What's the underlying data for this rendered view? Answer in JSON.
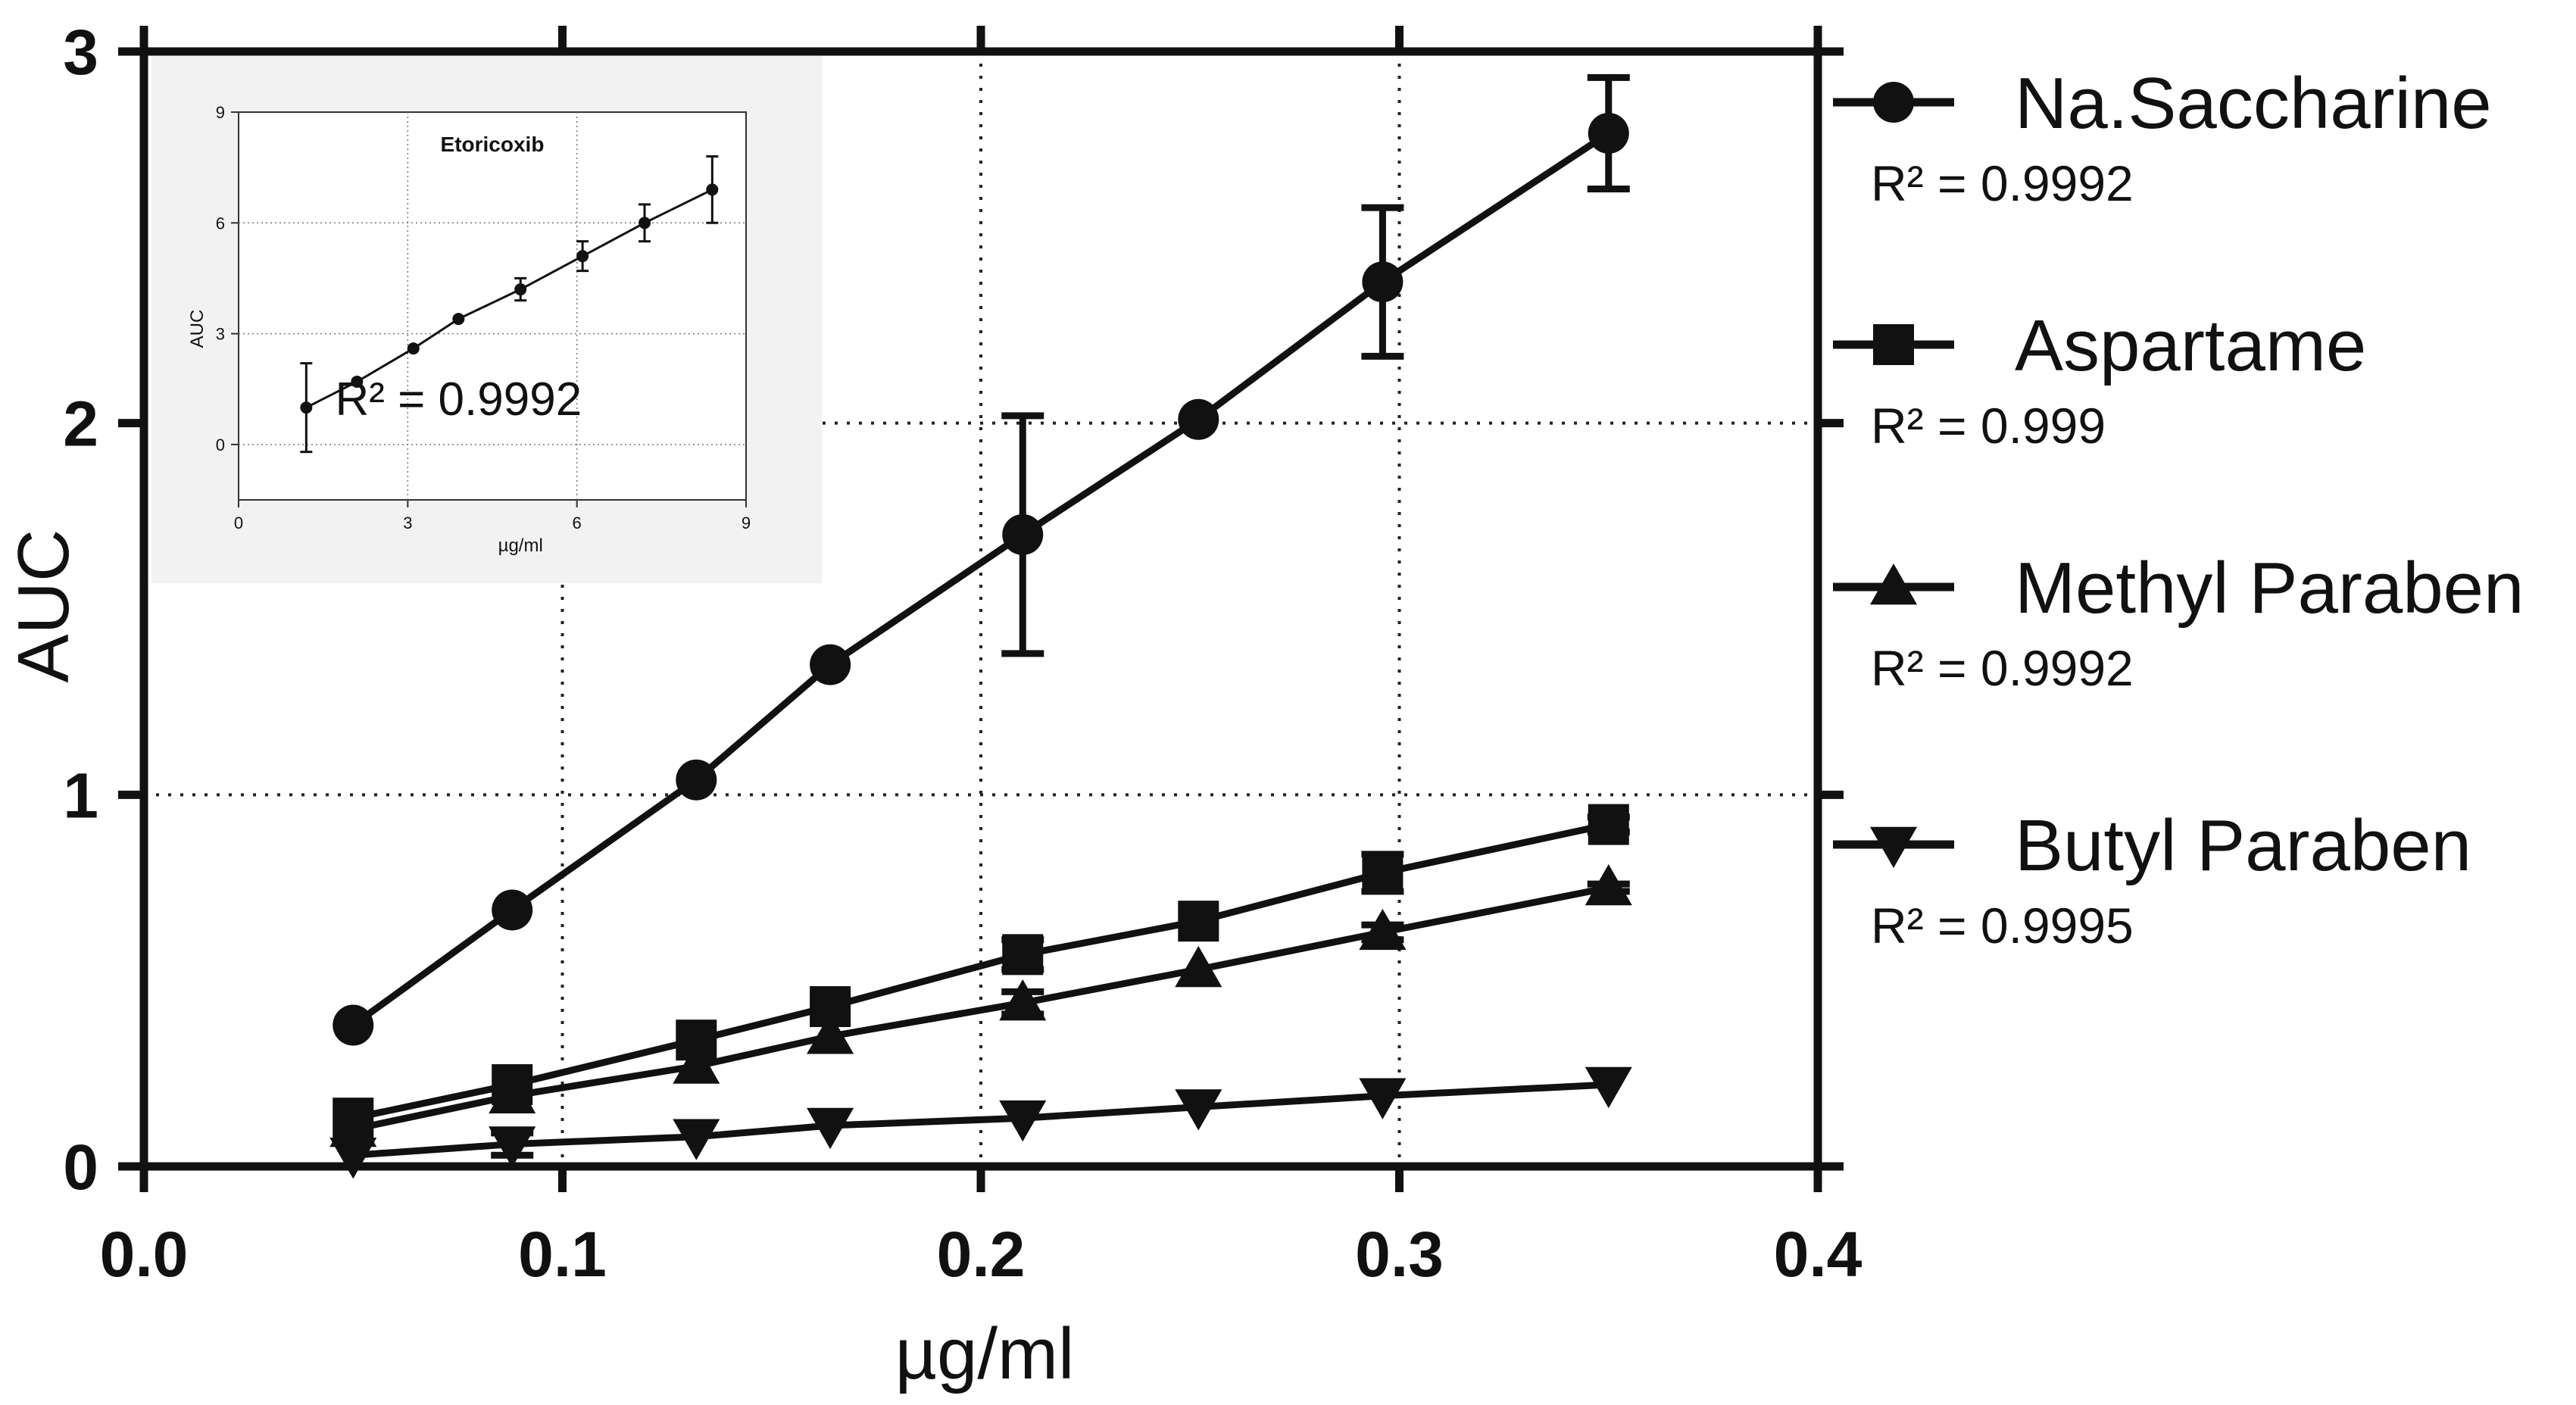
{
  "chart_data": {
    "type": "line",
    "xlabel": "µg/ml",
    "ylabel": "AUC",
    "xlim": [
      0.0,
      0.4
    ],
    "ylim": [
      0,
      3
    ],
    "x_ticks": [
      0.0,
      0.1,
      0.2,
      0.3,
      0.4
    ],
    "x_tick_labels": [
      "0.0",
      "0.1",
      "0.2",
      "0.3",
      "0.4"
    ],
    "y_ticks": [
      0,
      1,
      2,
      3
    ],
    "y_tick_labels": [
      "0",
      "1",
      "2",
      "3"
    ],
    "legend_position": "right",
    "grid": "dotted",
    "x": [
      0.05,
      0.088,
      0.132,
      0.164,
      0.21,
      0.252,
      0.296,
      0.35
    ],
    "series": [
      {
        "name": "Na.Saccharine",
        "r2": "R² = 0.9992",
        "marker": "circle",
        "values": [
          0.38,
          0.69,
          1.04,
          1.35,
          1.7,
          2.01,
          2.38,
          2.78
        ],
        "errors": [
          0,
          0,
          0,
          0,
          0.32,
          0,
          0.2,
          0.15
        ]
      },
      {
        "name": "Aspartame",
        "r2": "R² = 0.999",
        "marker": "square",
        "values": [
          0.13,
          0.22,
          0.34,
          0.43,
          0.57,
          0.66,
          0.79,
          0.92
        ],
        "errors": [
          0,
          0,
          0,
          0,
          0.04,
          0,
          0.05,
          0.02
        ]
      },
      {
        "name": "Methyl Paraben",
        "r2": "R² = 0.9992",
        "marker": "triangle-up",
        "values": [
          0.1,
          0.19,
          0.27,
          0.35,
          0.44,
          0.53,
          0.63,
          0.75
        ],
        "errors": [
          0,
          0,
          0,
          0,
          0.03,
          0,
          0.02,
          0.01
        ]
      },
      {
        "name": "Butyl Paraben",
        "r2": "R² = 0.9995",
        "marker": "triangle-down",
        "values": [
          0.03,
          0.06,
          0.08,
          0.11,
          0.13,
          0.16,
          0.19,
          0.22
        ],
        "errors": [
          0,
          0.03,
          0,
          0,
          0,
          0,
          0,
          0
        ]
      }
    ],
    "inset": {
      "title": "Etoricoxib",
      "xlabel": "µg/ml",
      "ylabel": "AUC",
      "xlim": [
        0,
        9
      ],
      "ylim": [
        -1.5,
        9
      ],
      "x_ticks": [
        0,
        3,
        6,
        9
      ],
      "x_tick_labels": [
        "0",
        "3",
        "6",
        "9"
      ],
      "y_ticks": [
        0,
        3,
        6,
        9
      ],
      "y_tick_labels": [
        "0",
        "3",
        "6",
        "9"
      ],
      "r2": "R² = 0.9992",
      "x": [
        1.2,
        2.1,
        3.1,
        3.9,
        5.0,
        6.1,
        7.2,
        8.4
      ],
      "values": [
        1.0,
        1.7,
        2.6,
        3.4,
        4.2,
        5.1,
        6.0,
        6.9
      ],
      "errors": [
        1.2,
        0,
        0,
        0,
        0.3,
        0.4,
        0.5,
        0.9
      ]
    }
  }
}
